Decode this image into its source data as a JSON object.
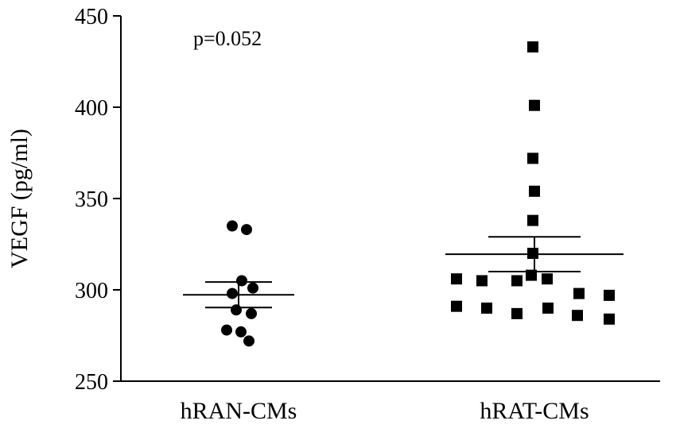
{
  "chart_data": {
    "type": "scatter",
    "ylabel": "VEGF (pg/ml)",
    "ylim": [
      250,
      450
    ],
    "yticks": [
      250,
      300,
      350,
      400,
      450
    ],
    "categories": [
      "hRAN-CMs",
      "hRAT-CMs"
    ],
    "annotation": "p=0.052",
    "color": "#000000",
    "series": [
      {
        "category": "hRAN-CMs",
        "marker": "circle",
        "values": [
          335,
          333,
          305,
          301,
          298,
          289,
          287,
          278,
          277,
          272
        ],
        "mean": 297.3,
        "sem_upper": 304.3,
        "sem_lower": 290.3
      },
      {
        "category": "hRAT-CMs",
        "marker": "square",
        "values": [
          433,
          401,
          372,
          354,
          338,
          320,
          308,
          306,
          306,
          305,
          305,
          298,
          297,
          291,
          290,
          290,
          287,
          286,
          284
        ],
        "mean": 319.5,
        "sem_upper": 329,
        "sem_lower": 310
      }
    ]
  }
}
